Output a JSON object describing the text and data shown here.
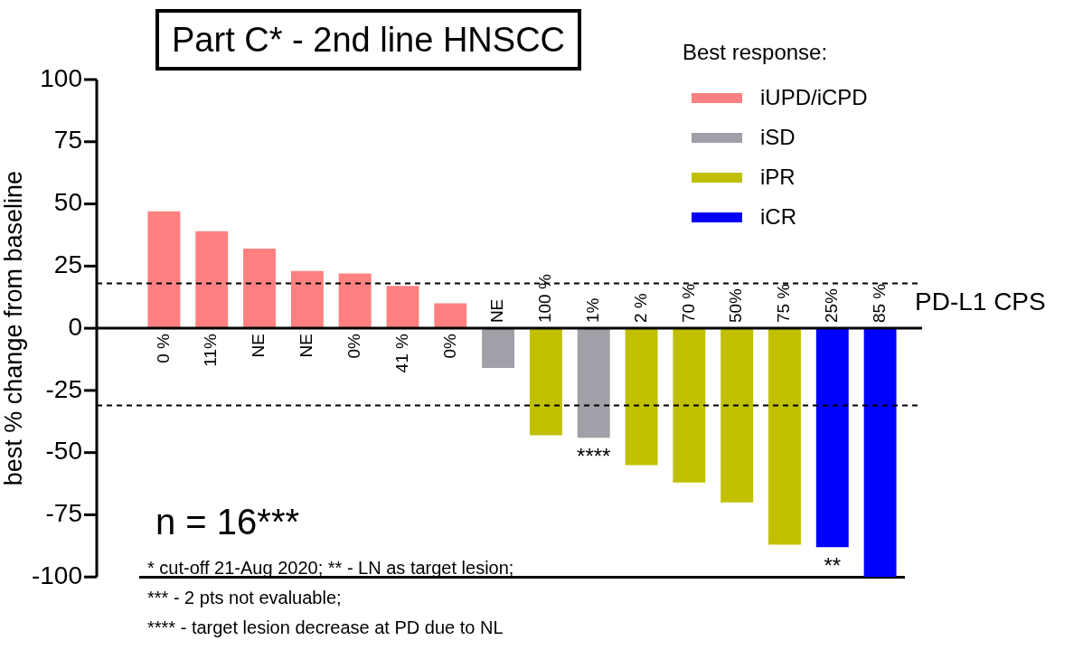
{
  "chart_data": {
    "type": "bar",
    "title": "Part C* - 2nd line HNSCC",
    "ylabel": "best % change from baseline",
    "xlabel": "PD-L1 CPS",
    "legend_title": "Best response:",
    "categories": [
      "0 %",
      "11%",
      "NE",
      "NE",
      "0%",
      "41 %",
      "0%",
      "NE",
      "100 %",
      "1%",
      "2 %",
      "70 %",
      "50%",
      "75 %",
      "25%",
      "85 %"
    ],
    "series": [
      {
        "name": "iUPD/iCPD",
        "color": "#ff8080",
        "values": [
          47,
          39,
          32,
          23,
          22,
          17,
          10,
          null,
          null,
          null,
          null,
          null,
          null,
          null,
          null,
          null
        ]
      },
      {
        "name": "iSD",
        "color": "#a0a0a8",
        "values": [
          null,
          null,
          null,
          null,
          null,
          null,
          null,
          -16,
          null,
          -44,
          null,
          null,
          null,
          null,
          null,
          null
        ]
      },
      {
        "name": "iPR",
        "color": "#c0c000",
        "values": [
          null,
          null,
          null,
          null,
          null,
          null,
          null,
          null,
          -43,
          null,
          -55,
          -62,
          -70,
          -87,
          null,
          null
        ]
      },
      {
        "name": "iCR",
        "color": "#0000ff",
        "values": [
          null,
          null,
          null,
          null,
          null,
          null,
          null,
          null,
          null,
          null,
          null,
          null,
          null,
          null,
          -88,
          -100
        ]
      }
    ],
    "ylim": [
      -100,
      100
    ],
    "yticks": [
      -100,
      -75,
      -50,
      -25,
      0,
      25,
      50,
      75,
      100
    ],
    "grid": false,
    "legend": "top right",
    "ref_lines": [
      {
        "axis": "y",
        "value": 18,
        "line_style": "dashed"
      },
      {
        "axis": "y",
        "value": -31,
        "line_style": "dashed"
      }
    ],
    "annotations": [
      "n = 16***",
      "* cut-off 21-Aug 2020; ** - LN as target lesion;",
      "*** - 2 pts not evaluable;",
      "**** - target lesion decrease at PD due to NL",
      {
        "text": "****",
        "x": "1%",
        "y": -44
      },
      {
        "text": "**",
        "x": "25%",
        "y": -88
      }
    ]
  }
}
